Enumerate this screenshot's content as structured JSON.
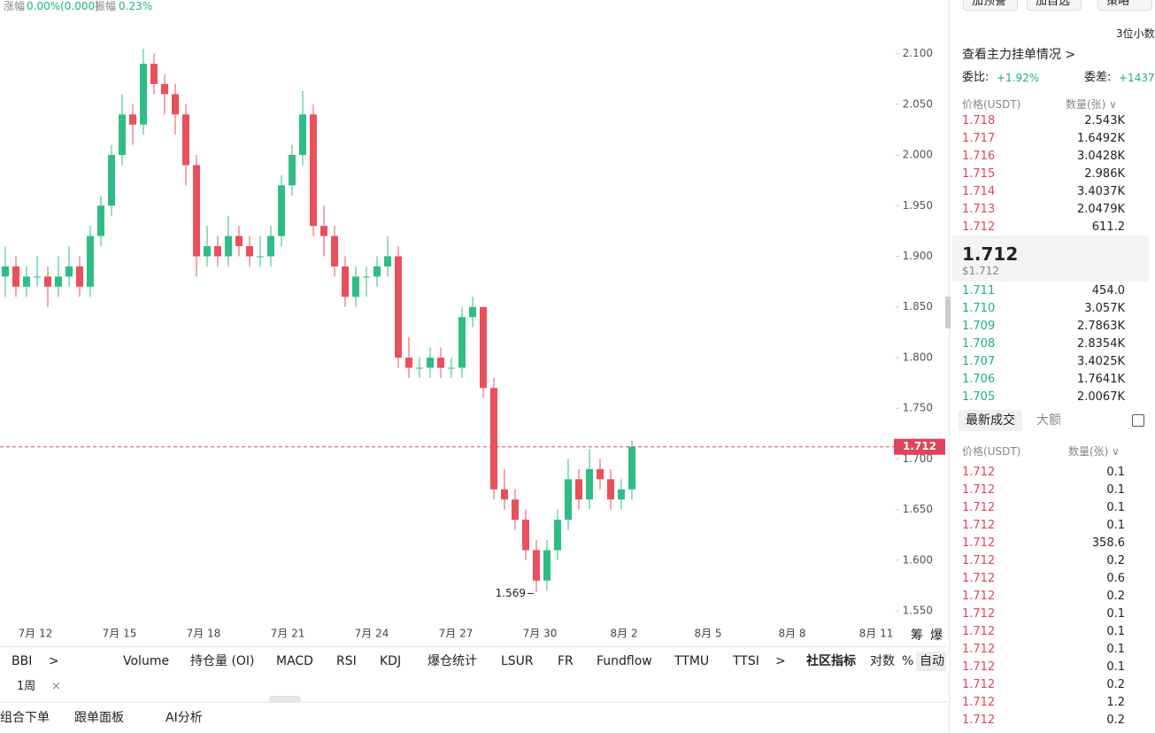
{
  "top_bar": {
    "change_label": "涨幅",
    "change": "0.00%(0.000)",
    "amp_label": "振幅",
    "amp": "0.23%"
  },
  "chart_data": {
    "type": "candlestick",
    "up_color": "#2ebd85",
    "down_color": "#e8505b",
    "candles": [
      [
        1.88,
        1.91,
        1.86,
        1.89
      ],
      [
        1.89,
        1.9,
        1.86,
        1.87
      ],
      [
        1.87,
        1.89,
        1.86,
        1.88
      ],
      [
        1.88,
        1.9,
        1.87,
        1.88
      ],
      [
        1.88,
        1.89,
        1.85,
        1.87
      ],
      [
        1.87,
        1.9,
        1.86,
        1.88
      ],
      [
        1.88,
        1.91,
        1.87,
        1.89
      ],
      [
        1.89,
        1.9,
        1.86,
        1.87
      ],
      [
        1.87,
        1.93,
        1.86,
        1.92
      ],
      [
        1.92,
        1.96,
        1.91,
        1.95
      ],
      [
        1.95,
        2.01,
        1.94,
        2.0
      ],
      [
        2.0,
        2.06,
        1.99,
        2.04
      ],
      [
        2.04,
        2.05,
        2.01,
        2.03
      ],
      [
        2.03,
        2.105,
        2.02,
        2.09
      ],
      [
        2.09,
        2.1,
        2.06,
        2.07
      ],
      [
        2.07,
        2.08,
        2.04,
        2.06
      ],
      [
        2.06,
        2.07,
        2.02,
        2.04
      ],
      [
        2.04,
        2.05,
        1.97,
        1.99
      ],
      [
        1.99,
        2.0,
        1.88,
        1.9
      ],
      [
        1.9,
        1.93,
        1.89,
        1.91
      ],
      [
        1.91,
        1.92,
        1.89,
        1.9
      ],
      [
        1.9,
        1.94,
        1.89,
        1.92
      ],
      [
        1.92,
        1.93,
        1.9,
        1.91
      ],
      [
        1.91,
        1.92,
        1.89,
        1.9
      ],
      [
        1.9,
        1.92,
        1.89,
        1.9
      ],
      [
        1.9,
        1.93,
        1.89,
        1.92
      ],
      [
        1.92,
        1.98,
        1.91,
        1.97
      ],
      [
        1.97,
        2.01,
        1.96,
        2.0
      ],
      [
        2.0,
        2.063,
        1.99,
        2.04
      ],
      [
        2.04,
        2.05,
        1.92,
        1.93
      ],
      [
        1.93,
        1.95,
        1.9,
        1.92
      ],
      [
        1.92,
        1.93,
        1.88,
        1.89
      ],
      [
        1.89,
        1.9,
        1.85,
        1.86
      ],
      [
        1.86,
        1.89,
        1.85,
        1.88
      ],
      [
        1.88,
        1.89,
        1.86,
        1.88
      ],
      [
        1.88,
        1.9,
        1.87,
        1.89
      ],
      [
        1.89,
        1.92,
        1.88,
        1.9
      ],
      [
        1.9,
        1.91,
        1.79,
        1.8
      ],
      [
        1.8,
        1.82,
        1.78,
        1.79
      ],
      [
        1.79,
        1.8,
        1.78,
        1.79
      ],
      [
        1.79,
        1.81,
        1.78,
        1.8
      ],
      [
        1.8,
        1.81,
        1.78,
        1.79
      ],
      [
        1.79,
        1.8,
        1.78,
        1.79
      ],
      [
        1.79,
        1.85,
        1.78,
        1.84
      ],
      [
        1.84,
        1.86,
        1.83,
        1.85
      ],
      [
        1.85,
        1.85,
        1.76,
        1.77
      ],
      [
        1.77,
        1.78,
        1.66,
        1.67
      ],
      [
        1.67,
        1.69,
        1.65,
        1.66
      ],
      [
        1.66,
        1.67,
        1.63,
        1.64
      ],
      [
        1.64,
        1.65,
        1.6,
        1.61
      ],
      [
        1.61,
        1.62,
        1.569,
        1.58
      ],
      [
        1.58,
        1.62,
        1.57,
        1.61
      ],
      [
        1.61,
        1.65,
        1.6,
        1.64
      ],
      [
        1.64,
        1.7,
        1.63,
        1.68
      ],
      [
        1.68,
        1.69,
        1.65,
        1.66
      ],
      [
        1.66,
        1.71,
        1.65,
        1.69
      ],
      [
        1.69,
        1.7,
        1.67,
        1.68
      ],
      [
        1.68,
        1.69,
        1.65,
        1.66
      ],
      [
        1.66,
        1.68,
        1.65,
        1.67
      ],
      [
        1.67,
        1.718,
        1.66,
        1.712
      ]
    ],
    "ylim": [
      1.537,
      2.118
    ],
    "yticks": [
      {
        "value": 1.55,
        "label": "1.550"
      },
      {
        "value": 1.6,
        "label": "1.600"
      },
      {
        "value": 1.65,
        "label": "1.650"
      },
      {
        "value": 1.7,
        "label": "1.700"
      },
      {
        "value": 1.75,
        "label": "1.750"
      },
      {
        "value": 1.8,
        "label": "1.800"
      },
      {
        "value": 1.85,
        "label": "1.850"
      },
      {
        "value": 1.9,
        "label": "1.900"
      },
      {
        "value": 1.95,
        "label": "1.950"
      },
      {
        "value": 2.0,
        "label": "2.000"
      },
      {
        "value": 2.05,
        "label": "2.050"
      },
      {
        "value": 2.1,
        "label": "2.100"
      }
    ],
    "x_labels": [
      "7月 12",
      "7月 15",
      "7月 18",
      "7月 21",
      "7月 24",
      "7月 27",
      "7月 30",
      "8月 2",
      "8月 5",
      "8月 8",
      "8月 11"
    ],
    "last_price": {
      "value": 1.712,
      "label": "1.712"
    },
    "low_marker": 1.569
  },
  "chart_side": [
    "筹",
    "爆"
  ],
  "indicators": [
    "BBI",
    ">",
    "Volume",
    "持仓量 (OI)",
    "MACD",
    "RSI",
    "KDJ",
    "爆仓统计",
    "LSUR",
    "FR",
    "Fundflow",
    "TTMU",
    "TTSI",
    ">",
    "社区指标",
    "对数",
    "%",
    "自动"
  ],
  "period_tab": "1周",
  "close_icon": "×",
  "bottom_tabs": [
    "组合下单",
    "跟单面板",
    "AI分析"
  ],
  "panel": {
    "buttons": [
      "加预警",
      "加自选",
      "策略"
    ],
    "decimals": "3位小数",
    "main_orders": "查看主力挂单情况 >",
    "ratio_label": "委比:",
    "ratio": "+1.92%",
    "diff_label": "委差:",
    "diff": "+1437",
    "price_header": "价格(USDT)",
    "qty_header": "数量(张) ∨",
    "asks": [
      [
        "1.718",
        "2.543K"
      ],
      [
        "1.717",
        "1.6492K"
      ],
      [
        "1.716",
        "3.0428K"
      ],
      [
        "1.715",
        "2.986K"
      ],
      [
        "1.714",
        "3.4037K"
      ],
      [
        "1.713",
        "2.0479K"
      ],
      [
        "1.712",
        "611.2"
      ]
    ],
    "mid_price": "1.712",
    "mid_usd": "$1.712",
    "bids": [
      [
        "1.711",
        "454.0"
      ],
      [
        "1.710",
        "3.057K"
      ],
      [
        "1.709",
        "2.7863K"
      ],
      [
        "1.708",
        "2.8354K"
      ],
      [
        "1.707",
        "3.4025K"
      ],
      [
        "1.706",
        "1.7641K"
      ],
      [
        "1.705",
        "2.0067K"
      ]
    ],
    "trade_tabs": [
      "最新成交",
      "大额"
    ],
    "trades": [
      [
        "1.712",
        "0.1"
      ],
      [
        "1.712",
        "0.1"
      ],
      [
        "1.712",
        "0.1"
      ],
      [
        "1.712",
        "0.1"
      ],
      [
        "1.712",
        "358.6"
      ],
      [
        "1.712",
        "0.2"
      ],
      [
        "1.712",
        "0.6"
      ],
      [
        "1.712",
        "0.2"
      ],
      [
        "1.712",
        "0.1"
      ],
      [
        "1.712",
        "0.1"
      ],
      [
        "1.712",
        "0.1"
      ],
      [
        "1.712",
        "0.1"
      ],
      [
        "1.712",
        "0.2"
      ],
      [
        "1.712",
        "1.2"
      ],
      [
        "1.712",
        "0.2"
      ]
    ]
  }
}
